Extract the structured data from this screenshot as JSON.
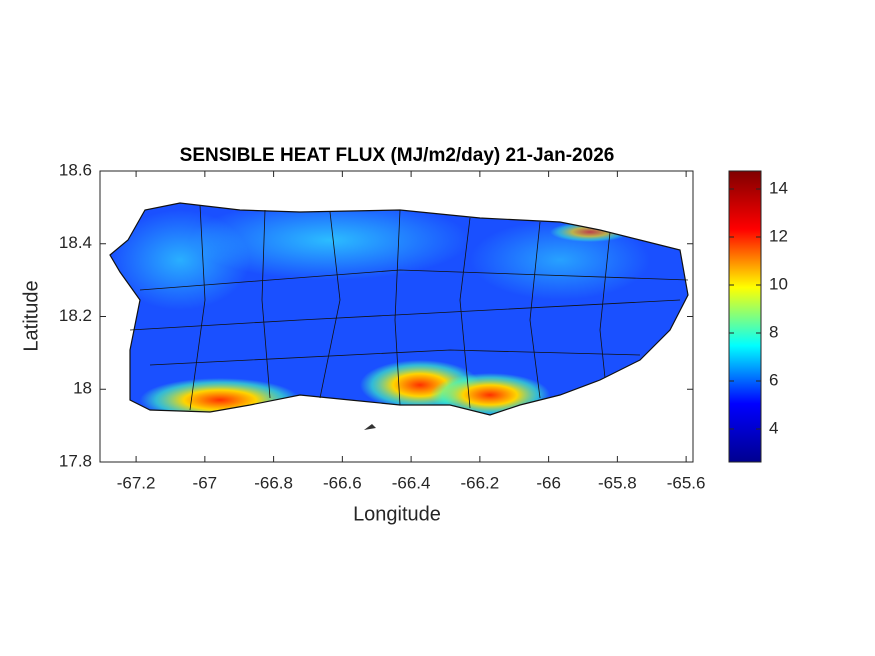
{
  "chart_data": {
    "type": "map",
    "title": "SENSIBLE HEAT FLUX (MJ/m2/day) 21-Jan-2026",
    "x_label": "Longitude",
    "y_label": "Latitude",
    "xlim": [
      -67.305,
      -65.58
    ],
    "ylim": [
      17.8,
      18.6
    ],
    "xticks": [
      -67.2,
      -67,
      -66.8,
      -66.6,
      -66.4,
      -66.2,
      -66,
      -65.8,
      -65.6
    ],
    "yticks": [
      17.8,
      18,
      18.2,
      18.4,
      18.6
    ],
    "colormap": "jet",
    "clim": [
      2.625,
      14.75
    ],
    "cticks": [
      4,
      6,
      8,
      10,
      12,
      14
    ]
  }
}
